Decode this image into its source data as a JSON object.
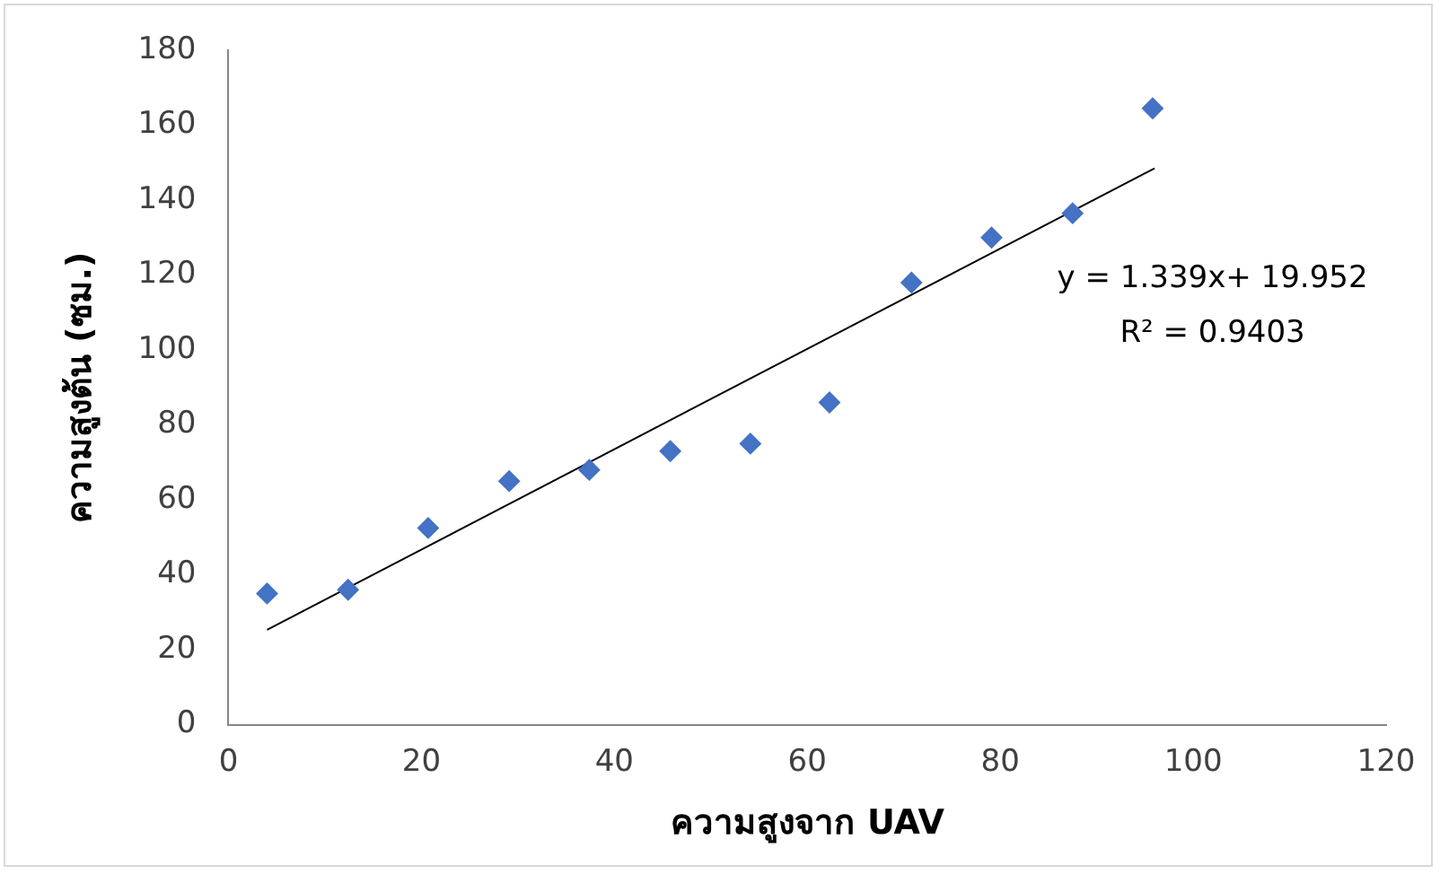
{
  "chart_data": {
    "type": "scatter",
    "xlabel": "ความสูงจาก UAV",
    "ylabel": "ความสูงต้น (ซม.)",
    "xlim": [
      0,
      120
    ],
    "xticks": [
      0,
      20,
      40,
      60,
      80,
      100,
      120
    ],
    "ylim": [
      0,
      180
    ],
    "yticks": [
      0,
      20,
      40,
      60,
      80,
      100,
      120,
      140,
      160,
      180
    ],
    "series": [
      {
        "marker": "diamond",
        "color": "#4472c4",
        "x": [
          4,
          12.4,
          20.7,
          29.1,
          37.4,
          45.8,
          54.1,
          62.3,
          70.8,
          79.1,
          87.5,
          95.8
        ],
        "values": [
          35,
          36,
          52.5,
          65,
          68,
          73,
          75,
          86,
          118,
          130,
          136.5,
          164.5
        ]
      },
      {
        "type": "line",
        "marker": "none",
        "color": "#000000",
        "x": [
          4,
          96
        ],
        "values": [
          25.3,
          148.5
        ]
      }
    ],
    "annotations": [
      "y = 1.339x+ 19.952",
      "R² = 0.9403"
    ]
  }
}
